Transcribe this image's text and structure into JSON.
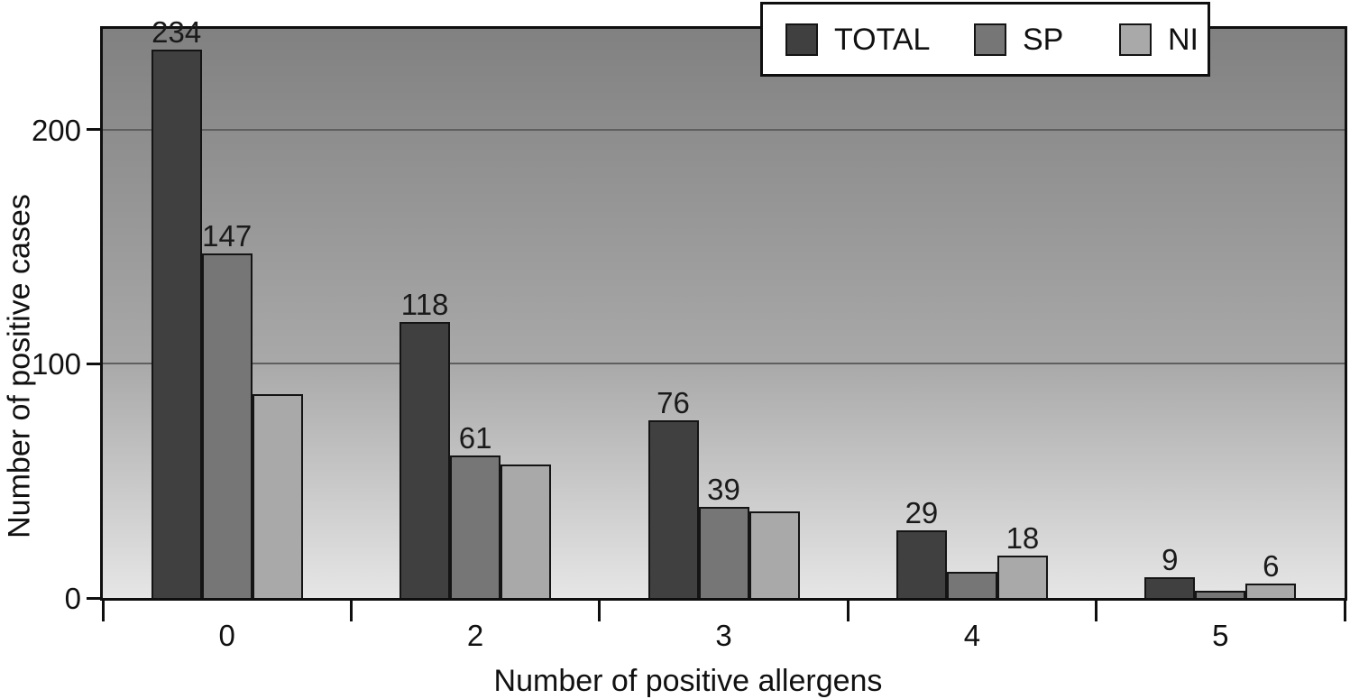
{
  "chart_data": {
    "type": "bar",
    "title": "",
    "xlabel": "Number of positive allergens",
    "ylabel": "Number of positive cases",
    "categories": [
      "0",
      "2",
      "3",
      "4",
      "5"
    ],
    "series": [
      {
        "name": "TOTAL",
        "color": "#404040",
        "values": [
          234,
          118,
          76,
          29,
          9
        ],
        "data_labels": [
          "234",
          "118",
          "76",
          "29",
          "9"
        ]
      },
      {
        "name": "SP",
        "color": "#767676",
        "values": [
          147,
          61,
          39,
          11,
          3
        ],
        "data_labels": [
          "147",
          "61",
          "39",
          null,
          null
        ]
      },
      {
        "name": "NI",
        "color": "#a9a9a9",
        "values": [
          87,
          57,
          37,
          18,
          6
        ],
        "data_labels": [
          null,
          null,
          null,
          "18",
          "6"
        ]
      }
    ],
    "ylim": [
      0,
      243
    ],
    "yticks": [
      0,
      100,
      200
    ],
    "ytick_labels": [
      "0",
      "100",
      "200"
    ],
    "grid": true,
    "gridline_color": "#5f5f5f",
    "legend_position": "top-right",
    "plot_background_gradient": [
      "#818181",
      "#a8a8a8",
      "#e6e6e6"
    ],
    "frame_color": "#0f0f0f"
  },
  "legend": {
    "items": [
      {
        "label": "TOTAL",
        "color": "#404040"
      },
      {
        "label": "SP",
        "color": "#767676"
      },
      {
        "label": "NI",
        "color": "#a9a9a9"
      }
    ]
  },
  "axes": {
    "x_title": "Number of positive allergens",
    "y_title": "Number of positive cases"
  }
}
